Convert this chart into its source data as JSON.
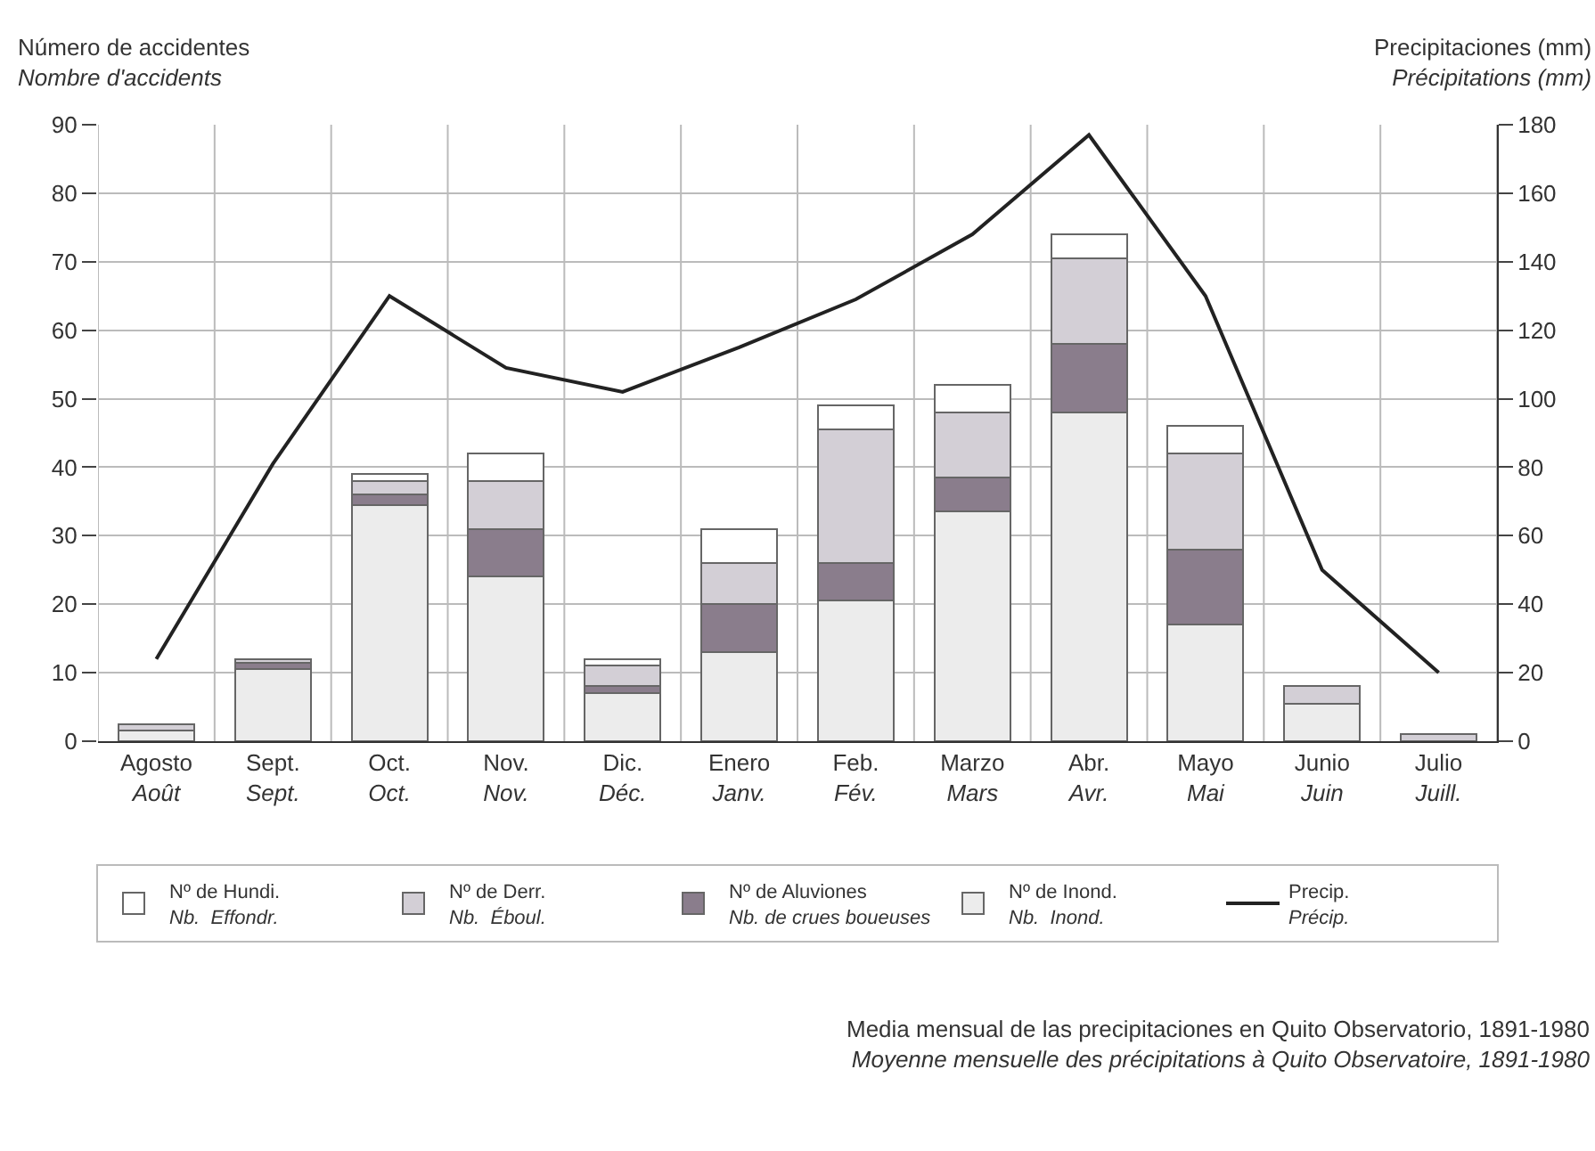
{
  "chart_data": {
    "type": "bar",
    "stacked": true,
    "ylabel": "Número de accidentes\nNombre d'accidents",
    "y2label": "Precipitaciones (mm)\nPrécipitations (mm)",
    "categories": [
      "Agosto\nAoût",
      "Sept.\nSept.",
      "Oct.\nOct.",
      "Nov.\nNov.",
      "Dic.\nDéc.",
      "Enero\nJanv.",
      "Feb.\nFév.",
      "Marzo\nMars",
      "Abr.\nAvr.",
      "Mayo\nMai",
      "Junio\nJuin",
      "Julio\nJuill."
    ],
    "series": [
      {
        "name": "Nº de Inond.\nNb.  Inond.",
        "color": "#ececec",
        "values": [
          1.5,
          10.5,
          34.5,
          24,
          7,
          13,
          20.5,
          33.5,
          48,
          17,
          5.5,
          null
        ]
      },
      {
        "name": "Nº de Aluviones\nNb. de crues boueuses",
        "color": "#8a7d8c",
        "values": [
          null,
          1,
          1.5,
          7,
          1,
          7,
          5.5,
          5,
          10,
          11,
          null,
          null
        ]
      },
      {
        "name": "Nº de Derr.\nNb.  Éboul.",
        "color": "#d3cfd6",
        "values": [
          1,
          0.5,
          2,
          7,
          3,
          6,
          19.5,
          9.5,
          12.5,
          14,
          2.5,
          1
        ]
      },
      {
        "name": "Nº de Hundi.\nNb.  Effondr.",
        "color": "#ffffff",
        "values": [
          null,
          null,
          1,
          4,
          1,
          5,
          3.5,
          4,
          3.5,
          4,
          null,
          null
        ]
      },
      {
        "name": "Precip.\nPrécip.",
        "type": "line",
        "axis": "y2",
        "color": "#222222",
        "values": [
          24,
          81,
          130,
          109,
          102,
          115,
          129,
          148,
          177,
          130,
          50,
          20
        ]
      }
    ],
    "ylim": [
      0,
      90
    ],
    "yticks": [
      0,
      10,
      20,
      30,
      40,
      50,
      60,
      70,
      80,
      90
    ],
    "y2lim": [
      0,
      180
    ],
    "y2ticks": [
      0,
      20,
      40,
      60,
      80,
      100,
      120,
      140,
      160,
      180
    ],
    "grid": true,
    "legend": "bottom",
    "marker": "none",
    "line_style": "solid",
    "annotations": [
      "Media mensual de las precipitaciones en Quito Observatorio, 1891-1980\nMoyenne mensuelle des précipitations à Quito Observatoire, 1891-1980"
    ]
  }
}
